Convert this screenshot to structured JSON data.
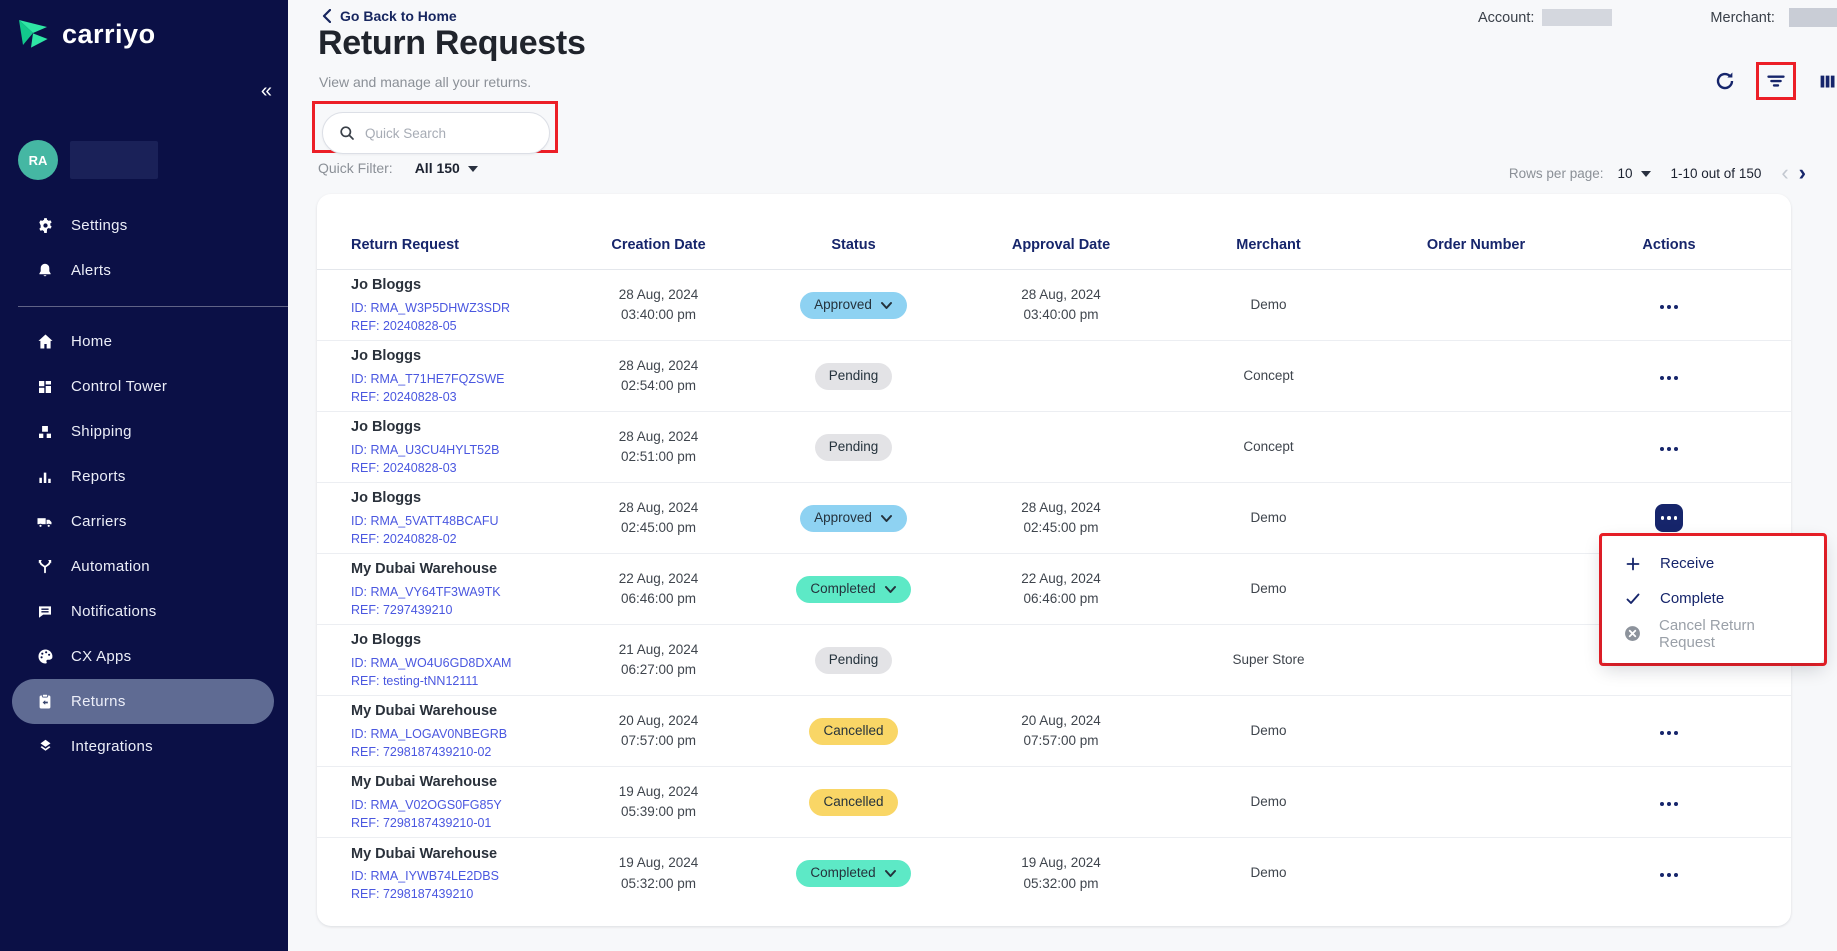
{
  "sidebar": {
    "brand": "carriyo",
    "avatar_initials": "RA",
    "collapse_glyph": "«",
    "top_items": [
      {
        "icon": "gear-icon",
        "label": "Settings"
      },
      {
        "icon": "bell-icon",
        "label": "Alerts"
      }
    ],
    "items": [
      {
        "icon": "home-icon",
        "label": "Home",
        "active": false
      },
      {
        "icon": "control-tower-icon",
        "label": "Control Tower",
        "active": false
      },
      {
        "icon": "shipping-icon",
        "label": "Shipping",
        "active": false
      },
      {
        "icon": "reports-icon",
        "label": "Reports",
        "active": false
      },
      {
        "icon": "truck-icon",
        "label": "Carriers",
        "active": false
      },
      {
        "icon": "automation-icon",
        "label": "Automation",
        "active": false
      },
      {
        "icon": "notifications-icon",
        "label": "Notifications",
        "active": false
      },
      {
        "icon": "cx-apps-icon",
        "label": "CX Apps",
        "active": false
      },
      {
        "icon": "returns-icon",
        "label": "Returns",
        "active": true
      },
      {
        "icon": "integrations-icon",
        "label": "Integrations",
        "active": false
      }
    ]
  },
  "header": {
    "back_link": "Go Back to Home",
    "title": "Return Requests",
    "subtitle": "View and manage all your returns.",
    "account_label": "Account:",
    "merchant_label": "Merchant:"
  },
  "search": {
    "placeholder": "Quick Search"
  },
  "toolbar": {
    "icons": [
      "refresh-icon",
      "filter-icon",
      "columns-icon"
    ]
  },
  "quick_filter": {
    "label": "Quick Filter:",
    "value": "All 150"
  },
  "pagination": {
    "rows_per_page_label": "Rows per page:",
    "rows_per_page": "10",
    "range": "1-10 out of 150",
    "prev_glyph": "‹",
    "next_glyph": "›"
  },
  "table": {
    "columns": [
      "Return Request",
      "Creation Date",
      "Status",
      "Approval Date",
      "Merchant",
      "Order Number",
      "Actions"
    ],
    "rows": [
      {
        "name": "Jo Bloggs",
        "id": "ID: RMA_W3P5DHWZ3SDR",
        "ref": "REF: 20240828-05",
        "creation_date": "28 Aug, 2024",
        "creation_time": "03:40:00 pm",
        "status": "Approved",
        "status_key": "approved",
        "status_chevron": true,
        "approval_date": "28 Aug, 2024",
        "approval_time": "03:40:00 pm",
        "merchant": "Demo",
        "order_number": "",
        "actions": "dots"
      },
      {
        "name": "Jo Bloggs",
        "id": "ID: RMA_T71HE7FQZSWE",
        "ref": "REF: 20240828-03",
        "creation_date": "28 Aug, 2024",
        "creation_time": "02:54:00 pm",
        "status": "Pending",
        "status_key": "pending",
        "status_chevron": false,
        "approval_date": "",
        "approval_time": "",
        "merchant": "Concept",
        "order_number": "",
        "actions": "dots"
      },
      {
        "name": "Jo Bloggs",
        "id": "ID: RMA_U3CU4HYLT52B",
        "ref": "REF: 20240828-03",
        "creation_date": "28 Aug, 2024",
        "creation_time": "02:51:00 pm",
        "status": "Pending",
        "status_key": "pending",
        "status_chevron": false,
        "approval_date": "",
        "approval_time": "",
        "merchant": "Concept",
        "order_number": "",
        "actions": "dots"
      },
      {
        "name": "Jo Bloggs",
        "id": "ID: RMA_5VATT48BCAFU",
        "ref": "REF: 20240828-02",
        "creation_date": "28 Aug, 2024",
        "creation_time": "02:45:00 pm",
        "status": "Approved",
        "status_key": "approved",
        "status_chevron": true,
        "approval_date": "28 Aug, 2024",
        "approval_time": "02:45:00 pm",
        "merchant": "Demo",
        "order_number": "",
        "actions": "active-button"
      },
      {
        "name": "My Dubai Warehouse",
        "id": "ID: RMA_VY64TF3WA9TK",
        "ref": "REF: 7297439210",
        "creation_date": "22 Aug, 2024",
        "creation_time": "06:46:00 pm",
        "status": "Completed",
        "status_key": "completed",
        "status_chevron": true,
        "approval_date": "22 Aug, 2024",
        "approval_time": "06:46:00 pm",
        "merchant": "Demo",
        "order_number": "",
        "actions": "none"
      },
      {
        "name": "Jo Bloggs",
        "id": "ID: RMA_WO4U6GD8DXAM",
        "ref": "REF: testing-tNN12111",
        "creation_date": "21 Aug, 2024",
        "creation_time": "06:27:00 pm",
        "status": "Pending",
        "status_key": "pending",
        "status_chevron": false,
        "approval_date": "",
        "approval_time": "",
        "merchant": "Super Store",
        "order_number": "",
        "actions": "dots"
      },
      {
        "name": "My Dubai Warehouse",
        "id": "ID: RMA_LOGAV0NBEGRB",
        "ref": "REF: 7298187439210-02",
        "creation_date": "20 Aug, 2024",
        "creation_time": "07:57:00 pm",
        "status": "Cancelled",
        "status_key": "cancelled",
        "status_chevron": false,
        "approval_date": "20 Aug, 2024",
        "approval_time": "07:57:00 pm",
        "merchant": "Demo",
        "order_number": "",
        "actions": "dots"
      },
      {
        "name": "My Dubai Warehouse",
        "id": "ID: RMA_V02OGS0FG85Y",
        "ref": "REF: 7298187439210-01",
        "creation_date": "19 Aug, 2024",
        "creation_time": "05:39:00 pm",
        "status": "Cancelled",
        "status_key": "cancelled",
        "status_chevron": false,
        "approval_date": "",
        "approval_time": "",
        "merchant": "Demo",
        "order_number": "",
        "actions": "dots"
      },
      {
        "name": "My Dubai Warehouse",
        "id": "ID: RMA_IYWB74LE2DBS",
        "ref": "REF: 7298187439210",
        "creation_date": "19 Aug, 2024",
        "creation_time": "05:32:00 pm",
        "status": "Completed",
        "status_key": "completed",
        "status_chevron": true,
        "approval_date": "19 Aug, 2024",
        "approval_time": "05:32:00 pm",
        "merchant": "Demo",
        "order_number": "",
        "actions": "dots"
      }
    ]
  },
  "actions_menu": {
    "items": [
      {
        "icon": "plus-icon",
        "label": "Receive",
        "disabled": false
      },
      {
        "icon": "check-icon",
        "label": "Complete",
        "disabled": false
      },
      {
        "icon": "circle-x-icon",
        "label": "Cancel Return Request",
        "disabled": true
      }
    ]
  },
  "colors": {
    "sidebar_bg": "#0b1046",
    "accent_green": "#22e2a0",
    "navy": "#16256b",
    "link_blue": "#4a57e0",
    "annotation_red": "#ec1f27",
    "approved_bg": "#8ed2f2",
    "pending_bg": "#e3e3e6",
    "completed_bg": "#5de9c6",
    "cancelled_bg": "#f9d666"
  }
}
